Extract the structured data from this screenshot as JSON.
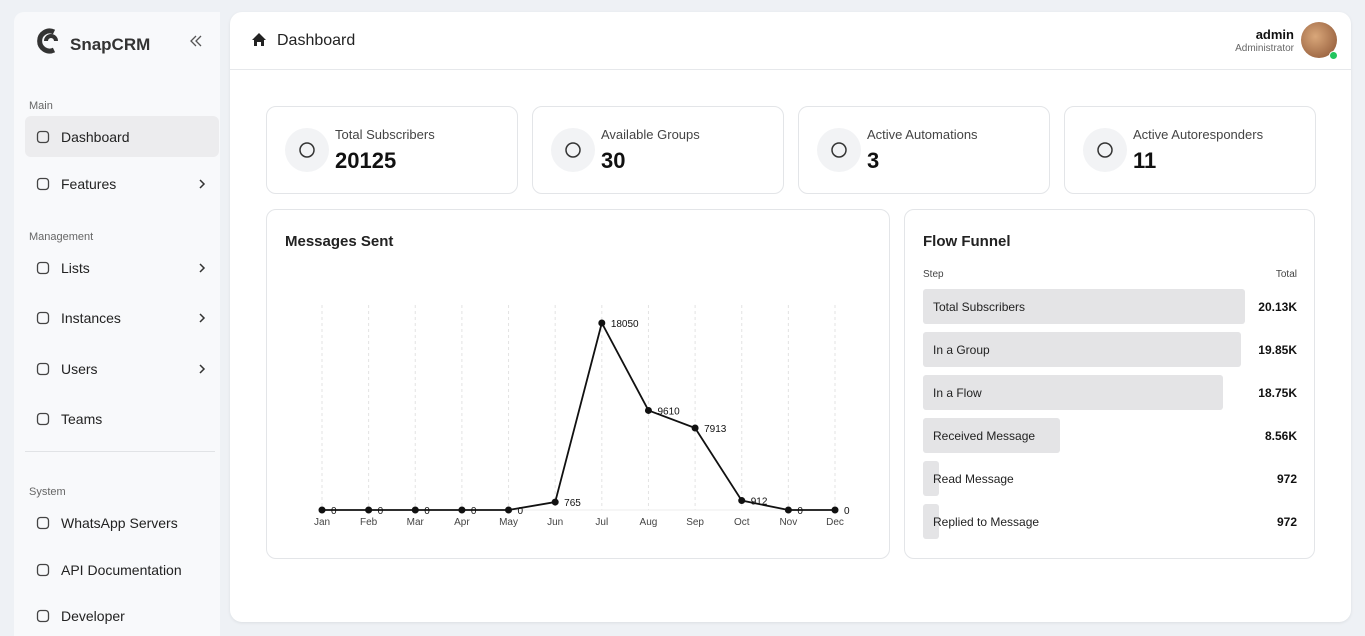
{
  "sidebar": {
    "brand": "SnapCRM",
    "sections": [
      {
        "title": "Main",
        "items": [
          {
            "label": "Dashboard",
            "active": true
          },
          {
            "label": "Features",
            "expandable": true
          }
        ]
      },
      {
        "title": "Management",
        "items": [
          {
            "label": "Lists",
            "expandable": true
          },
          {
            "label": "Instances",
            "expandable": true
          },
          {
            "label": "Users",
            "expandable": true
          },
          {
            "label": "Teams"
          }
        ]
      },
      {
        "title": "System",
        "items": [
          {
            "label": "WhatsApp Servers"
          },
          {
            "label": "API Documentation"
          },
          {
            "label": "Developer"
          }
        ]
      }
    ]
  },
  "header": {
    "title": "Dashboard",
    "user": "admin",
    "role": "Administrator"
  },
  "stats": [
    {
      "label": "Total Subscribers",
      "value": 20125
    },
    {
      "label": "Available Groups",
      "value": 30
    },
    {
      "label": "Active Automations",
      "value": 3
    },
    {
      "label": "Active Autoresponders",
      "value": 11
    }
  ],
  "chart_data": {
    "type": "line",
    "title": "Messages Sent",
    "categories": [
      "Jan",
      "Feb",
      "Mar",
      "Apr",
      "May",
      "Jun",
      "Jul",
      "Aug",
      "Sep",
      "Oct",
      "Nov",
      "Dec"
    ],
    "values": [
      0,
      0,
      0,
      0,
      0,
      765,
      18050,
      9610,
      7913,
      912,
      0,
      0
    ],
    "color": "#111111",
    "grid": true
  },
  "funnel": {
    "title": "Flow Funnel",
    "columns": [
      "Step",
      "Total"
    ],
    "steps": [
      "Total Subscribers",
      "In a Group",
      "In a Flow",
      "Received Message",
      "Read Message",
      "Replied to Message"
    ],
    "values": [
      20125,
      19850,
      18750,
      8560,
      972,
      972
    ],
    "value_labels": [
      "20.13K",
      "19.85K",
      "18.75K",
      "8.56K",
      "972",
      "972"
    ],
    "color": "#e4e4e6"
  }
}
